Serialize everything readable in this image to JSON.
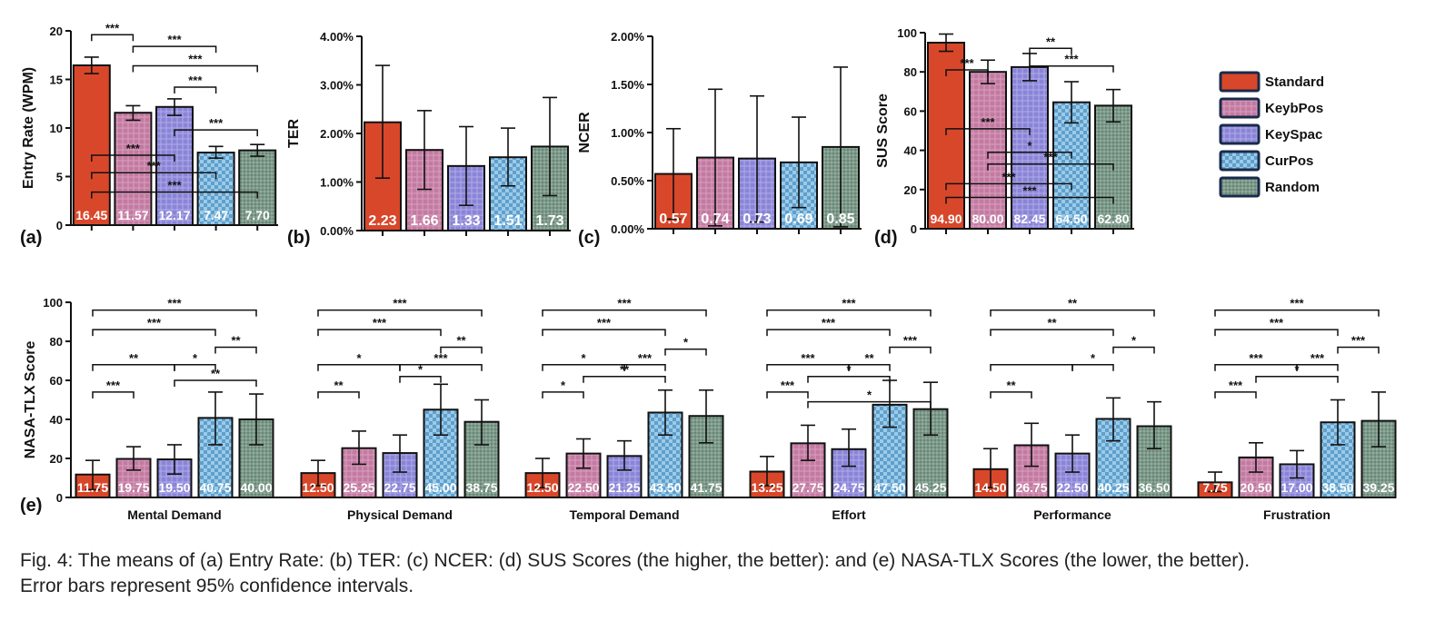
{
  "conditions": [
    "Standard",
    "KeybPos",
    "KeySpac",
    "CurPos",
    "Random"
  ],
  "colors": {
    "Standard": "#d9472a",
    "KeybPos": "#c27aa0",
    "KeySpac": "#8a84d6",
    "CurPos": "#8fc3e6",
    "Random": "#7d9a8a",
    "Standard_dark": "#b83a20",
    "KeybPos_dark": "#a85f88",
    "KeySpac_dark": "#6f69c2",
    "CurPos_dark": "#5f9fcc",
    "Random_dark": "#5f7b6b"
  },
  "legend": {
    "items": [
      "Standard",
      "KeybPos",
      "KeySpac",
      "CurPos",
      "Random"
    ]
  },
  "caption": {
    "line1": "Fig. 4: The means of (a) Entry Rate: (b) TER: (c) NCER: (d) SUS Scores (the higher, the better): and (e) NASA-TLX Scores (the lower, the better).",
    "line2": "Error bars represent 95% confidence intervals."
  },
  "chart_data": [
    {
      "panel": "(a)",
      "type": "bar",
      "ylabel": "Entry Rate (WPM)",
      "ylim": [
        0,
        20
      ],
      "yticks": [
        "0",
        "5",
        "10",
        "15",
        "20"
      ],
      "categories": [
        "Standard",
        "KeybPos",
        "KeySpac",
        "CurPos",
        "Random"
      ],
      "values": [
        16.45,
        11.57,
        12.17,
        7.47,
        7.7
      ],
      "value_labels": [
        "16.45",
        "11.57",
        "12.17",
        "7.47",
        "7.70"
      ],
      "ci": [
        [
          15.6,
          17.3
        ],
        [
          10.8,
          12.3
        ],
        [
          11.3,
          13.0
        ],
        [
          6.9,
          8.1
        ],
        [
          7.1,
          8.3
        ]
      ],
      "significance": [
        {
          "from": 0,
          "to": 1,
          "level": 0.98,
          "label": "***"
        },
        {
          "from": 1,
          "to": 3,
          "level": 0.92,
          "label": "***"
        },
        {
          "from": 1,
          "to": 4,
          "level": 0.82,
          "label": "***"
        },
        {
          "from": 2,
          "to": 3,
          "level": 0.71,
          "label": "***"
        },
        {
          "from": 2,
          "to": 4,
          "level": 0.49,
          "label": "***"
        },
        {
          "from": 0,
          "to": 2,
          "level": 0.36,
          "label": "***"
        },
        {
          "from": 0,
          "to": 3,
          "level": 0.27,
          "label": "***"
        },
        {
          "from": 0,
          "to": 4,
          "level": 0.17,
          "label": "***"
        }
      ]
    },
    {
      "panel": "(b)",
      "type": "bar",
      "ylabel": "TER",
      "ylim": [
        0,
        4
      ],
      "yticks": [
        "0.00%",
        "1.00%",
        "2.00%",
        "3.00%",
        "4.00%"
      ],
      "categories": [
        "Standard",
        "KeybPos",
        "KeySpac",
        "CurPos",
        "Random"
      ],
      "values": [
        2.23,
        1.66,
        1.33,
        1.51,
        1.73
      ],
      "value_labels": [
        "2.23",
        "1.66",
        "1.33",
        "1.51",
        "1.73"
      ],
      "ci": [
        [
          1.08,
          3.4
        ],
        [
          0.85,
          2.47
        ],
        [
          0.52,
          2.14
        ],
        [
          0.92,
          2.11
        ],
        [
          0.72,
          2.74
        ]
      ],
      "significance": []
    },
    {
      "panel": "(c)",
      "type": "bar",
      "ylabel": "NCER",
      "ylim": [
        0,
        2
      ],
      "yticks": [
        "0.00%",
        "0.50%",
        "1.00%",
        "1.50%",
        "2.00%"
      ],
      "categories": [
        "Standard",
        "KeybPos",
        "KeySpac",
        "CurPos",
        "Random"
      ],
      "values": [
        0.57,
        0.74,
        0.73,
        0.69,
        0.85
      ],
      "value_labels": [
        "0.57",
        "0.74",
        "0.73",
        "0.69",
        "0.85"
      ],
      "ci": [
        [
          0.1,
          1.04
        ],
        [
          0.03,
          1.45
        ],
        [
          0.07,
          1.38
        ],
        [
          0.22,
          1.16
        ],
        [
          0.02,
          1.68
        ]
      ],
      "significance": []
    },
    {
      "panel": "(d)",
      "type": "bar",
      "ylabel": "SUS Score",
      "ylim": [
        0,
        100
      ],
      "yticks": [
        "0",
        "20",
        "40",
        "60",
        "80",
        "100"
      ],
      "categories": [
        "Standard",
        "KeybPos",
        "KeySpac",
        "CurPos",
        "Random"
      ],
      "values": [
        94.9,
        80.0,
        82.45,
        64.5,
        62.8
      ],
      "value_labels": [
        "94.90",
        "80.00",
        "82.45",
        "64.50",
        "62.80"
      ],
      "ci": [
        [
          90.5,
          99.3
        ],
        [
          74.0,
          86.0
        ],
        [
          75.5,
          89.4
        ],
        [
          54.0,
          75.0
        ],
        [
          54.5,
          71.0
        ]
      ],
      "significance": [
        {
          "from": 2,
          "to": 3,
          "level": 0.92,
          "label": "**"
        },
        {
          "from": 2,
          "to": 4,
          "level": 0.83,
          "label": "***"
        },
        {
          "from": 0,
          "to": 1,
          "level": 0.81,
          "label": "***"
        },
        {
          "from": 0,
          "to": 2,
          "level": 0.51,
          "label": "***"
        },
        {
          "from": 1,
          "to": 3,
          "level": 0.39,
          "label": "*"
        },
        {
          "from": 1,
          "to": 4,
          "level": 0.33,
          "label": "***"
        },
        {
          "from": 0,
          "to": 3,
          "level": 0.23,
          "label": "***"
        },
        {
          "from": 0,
          "to": 4,
          "level": 0.16,
          "label": "***"
        }
      ]
    },
    {
      "panel": "(e)",
      "type": "bar",
      "ylabel": "NASA-TLX Score",
      "ylim": [
        0,
        100
      ],
      "yticks": [
        "0",
        "20",
        "40",
        "60",
        "80",
        "100"
      ],
      "groups": [
        {
          "name": "Mental Demand",
          "values": [
            11.75,
            19.75,
            19.5,
            40.75,
            40.0
          ],
          "value_labels": [
            "11.75",
            "19.75",
            "19.50",
            "40.75",
            "40.00"
          ],
          "ci": [
            [
              4,
              19
            ],
            [
              14,
              26
            ],
            [
              12,
              27
            ],
            [
              27,
              54
            ],
            [
              27,
              53
            ]
          ],
          "significance": [
            {
              "from": 0,
              "to": 4,
              "level": 0.96,
              "label": "***"
            },
            {
              "from": 0,
              "to": 3,
              "level": 0.86,
              "label": "***"
            },
            {
              "from": 3,
              "to": 4,
              "level": 0.77,
              "label": "**"
            },
            {
              "from": 0,
              "to": 2,
              "level": 0.68,
              "label": "**"
            },
            {
              "from": 2,
              "to": 3,
              "level": 0.68,
              "label": "*"
            },
            {
              "from": 2,
              "to": 4,
              "level": 0.6,
              "label": "**"
            },
            {
              "from": 0,
              "to": 1,
              "level": 0.54,
              "label": "***"
            }
          ]
        },
        {
          "name": "Physical Demand",
          "values": [
            12.5,
            25.25,
            22.75,
            45.0,
            38.75
          ],
          "value_labels": [
            "12.50",
            "25.25",
            "22.75",
            "45.00",
            "38.75"
          ],
          "ci": [
            [
              6,
              19
            ],
            [
              17,
              34
            ],
            [
              13,
              32
            ],
            [
              32,
              58
            ],
            [
              27,
              50
            ]
          ],
          "significance": [
            {
              "from": 0,
              "to": 4,
              "level": 0.96,
              "label": "***"
            },
            {
              "from": 0,
              "to": 3,
              "level": 0.86,
              "label": "***"
            },
            {
              "from": 3,
              "to": 4,
              "level": 0.77,
              "label": "**"
            },
            {
              "from": 0,
              "to": 2,
              "level": 0.68,
              "label": "*"
            },
            {
              "from": 2,
              "to": 4,
              "level": 0.68,
              "label": "***"
            },
            {
              "from": 2,
              "to": 3,
              "level": 0.62,
              "label": "*"
            },
            {
              "from": 0,
              "to": 1,
              "level": 0.54,
              "label": "**"
            }
          ]
        },
        {
          "name": "Temporal Demand",
          "values": [
            12.5,
            22.5,
            21.25,
            43.5,
            41.75
          ],
          "value_labels": [
            "12.50",
            "22.50",
            "21.25",
            "43.50",
            "41.75"
          ],
          "ci": [
            [
              5,
              20
            ],
            [
              15,
              30
            ],
            [
              14,
              29
            ],
            [
              32,
              55
            ],
            [
              28,
              55
            ]
          ],
          "significance": [
            {
              "from": 0,
              "to": 4,
              "level": 0.96,
              "label": "***"
            },
            {
              "from": 0,
              "to": 3,
              "level": 0.86,
              "label": "***"
            },
            {
              "from": 3,
              "to": 4,
              "level": 0.76,
              "label": "*"
            },
            {
              "from": 0,
              "to": 2,
              "level": 0.68,
              "label": "*"
            },
            {
              "from": 2,
              "to": 3,
              "level": 0.68,
              "label": "***"
            },
            {
              "from": 1,
              "to": 3,
              "level": 0.62,
              "label": "**"
            },
            {
              "from": 0,
              "to": 1,
              "level": 0.54,
              "label": "*"
            }
          ]
        },
        {
          "name": "Effort",
          "values": [
            13.25,
            27.75,
            24.75,
            47.5,
            45.25
          ],
          "value_labels": [
            "13.25",
            "27.75",
            "24.75",
            "47.50",
            "45.25"
          ],
          "ci": [
            [
              6,
              21
            ],
            [
              19,
              37
            ],
            [
              16,
              35
            ],
            [
              36,
              60
            ],
            [
              32,
              59
            ]
          ],
          "significance": [
            {
              "from": 0,
              "to": 4,
              "level": 0.96,
              "label": "***"
            },
            {
              "from": 0,
              "to": 3,
              "level": 0.86,
              "label": "***"
            },
            {
              "from": 3,
              "to": 4,
              "level": 0.77,
              "label": "***"
            },
            {
              "from": 0,
              "to": 2,
              "level": 0.68,
              "label": "***"
            },
            {
              "from": 2,
              "to": 3,
              "level": 0.68,
              "label": "**"
            },
            {
              "from": 1,
              "to": 3,
              "level": 0.62,
              "label": "*"
            },
            {
              "from": 0,
              "to": 1,
              "level": 0.54,
              "label": "***"
            },
            {
              "from": 1,
              "to": 4,
              "level": 0.49,
              "label": "*"
            }
          ]
        },
        {
          "name": "Performance",
          "values": [
            14.5,
            26.75,
            22.5,
            40.25,
            36.5
          ],
          "value_labels": [
            "14.50",
            "26.75",
            "22.50",
            "40.25",
            "36.50"
          ],
          "ci": [
            [
              5,
              25
            ],
            [
              16,
              38
            ],
            [
              13,
              32
            ],
            [
              29,
              51
            ],
            [
              25,
              49
            ]
          ],
          "significance": [
            {
              "from": 0,
              "to": 4,
              "level": 0.96,
              "label": "**"
            },
            {
              "from": 0,
              "to": 3,
              "level": 0.86,
              "label": "**"
            },
            {
              "from": 3,
              "to": 4,
              "level": 0.77,
              "label": "*"
            },
            {
              "from": 0,
              "to": 2,
              "level": 0.68,
              "label": ""
            },
            {
              "from": 2,
              "to": 3,
              "level": 0.68,
              "label": "*"
            },
            {
              "from": 0,
              "to": 1,
              "level": 0.54,
              "label": "**"
            }
          ]
        },
        {
          "name": "Frustration",
          "values": [
            7.75,
            20.5,
            17.0,
            38.5,
            39.25
          ],
          "value_labels": [
            "7.75",
            "20.50",
            "17.00",
            "38.50",
            "39.25"
          ],
          "ci": [
            [
              3,
              13
            ],
            [
              13,
              28
            ],
            [
              10,
              24
            ],
            [
              27,
              50
            ],
            [
              26,
              54
            ]
          ],
          "significance": [
            {
              "from": 0,
              "to": 4,
              "level": 0.96,
              "label": "***"
            },
            {
              "from": 0,
              "to": 3,
              "level": 0.86,
              "label": "***"
            },
            {
              "from": 3,
              "to": 4,
              "level": 0.77,
              "label": "***"
            },
            {
              "from": 0,
              "to": 2,
              "level": 0.68,
              "label": "***"
            },
            {
              "from": 2,
              "to": 3,
              "level": 0.68,
              "label": "***"
            },
            {
              "from": 1,
              "to": 3,
              "level": 0.62,
              "label": "*"
            },
            {
              "from": 0,
              "to": 1,
              "level": 0.54,
              "label": "***"
            }
          ]
        }
      ]
    }
  ]
}
